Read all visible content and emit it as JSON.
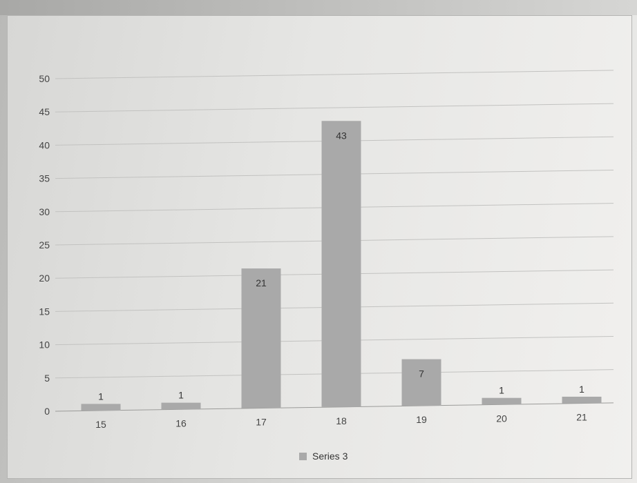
{
  "chart_data": {
    "type": "bar",
    "categories": [
      "15",
      "16",
      "17",
      "18",
      "19",
      "20",
      "21"
    ],
    "series": [
      {
        "name": "Series 3",
        "values": [
          1,
          1,
          21,
          43,
          7,
          1,
          1
        ],
        "color": "#a9a9a9"
      }
    ],
    "data_labels": [
      "1",
      "1",
      "21",
      "43",
      "7",
      "1",
      "1"
    ],
    "ylim": [
      0,
      50
    ],
    "yticks": [
      0,
      5,
      10,
      15,
      20,
      25,
      30,
      35,
      40,
      45,
      50
    ],
    "grid": true,
    "legend_position": "bottom",
    "title": "",
    "xlabel": "",
    "ylabel": ""
  }
}
